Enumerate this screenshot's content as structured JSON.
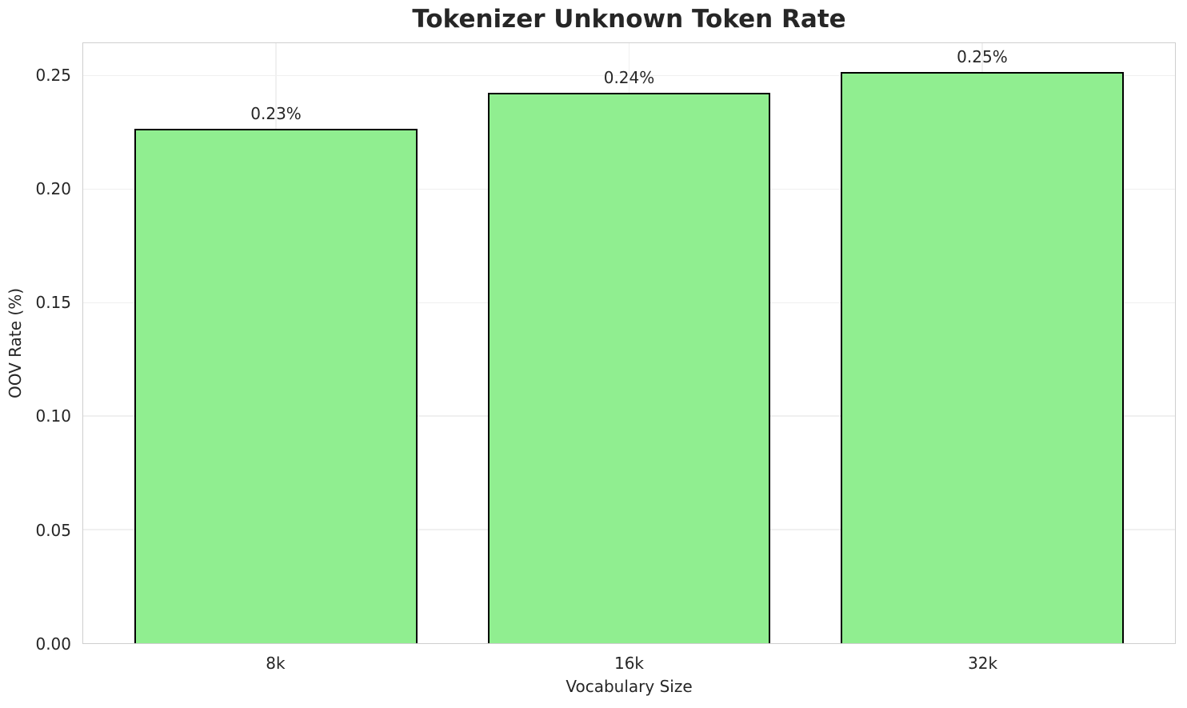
{
  "chart_data": {
    "type": "bar",
    "title": "Tokenizer Unknown Token Rate",
    "xlabel": "Vocabulary Size",
    "ylabel": "OOV Rate (%)",
    "categories": [
      "8k",
      "16k",
      "32k"
    ],
    "values": [
      0.2266,
      0.2425,
      0.2517
    ],
    "bar_labels": [
      "0.23%",
      "0.24%",
      "0.25%"
    ],
    "yticks": [
      0.0,
      0.05,
      0.1,
      0.15,
      0.2,
      0.25
    ],
    "ytick_labels": [
      "0.00",
      "0.05",
      "0.10",
      "0.15",
      "0.20",
      "0.25"
    ],
    "ylim": [
      0,
      0.2643
    ],
    "grid": true,
    "legend": false,
    "bar_color": "#90EE90",
    "bar_edge_color": "#000000",
    "grid_color": "#f0f0f0",
    "spine_color": "#cfcfcf",
    "text_color": "#262626"
  }
}
